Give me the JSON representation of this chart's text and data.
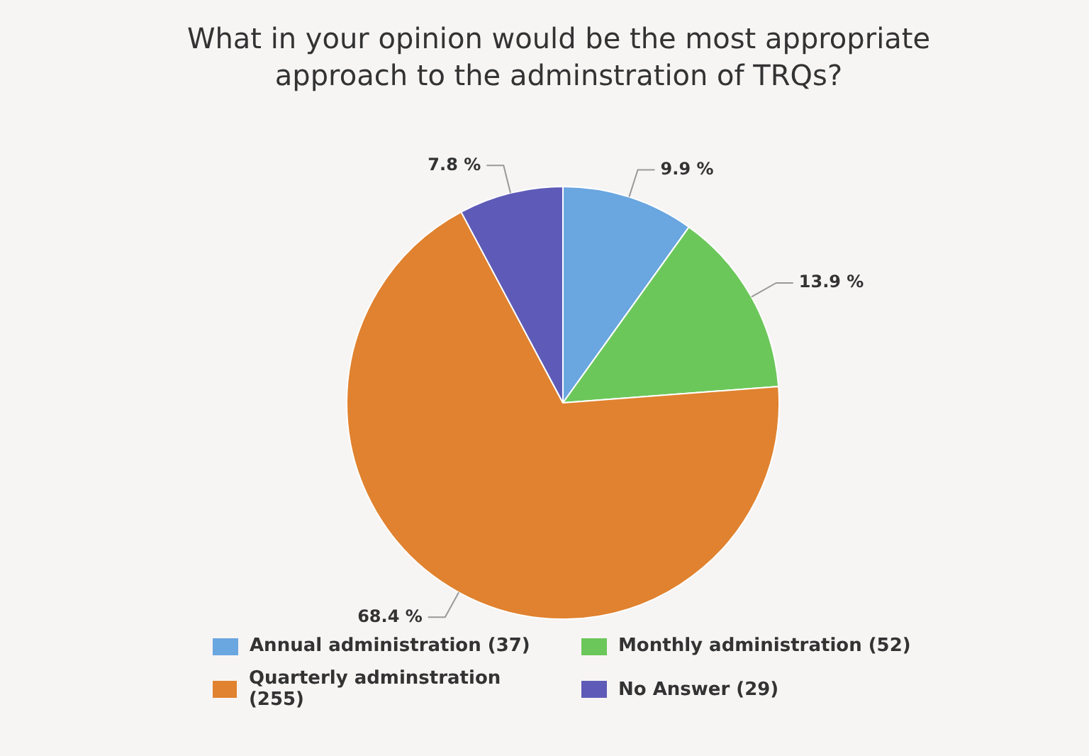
{
  "chart_data": {
    "type": "pie",
    "title": "What in your opinion would be the most appropriate approach to the adminstration of TRQs?",
    "categories": [
      "Annual administration (37)",
      "Monthly administration (52)",
      "Quarterly adminstration (255)",
      "No Answer (29)"
    ],
    "values": [
      9.9,
      13.9,
      68.4,
      7.8
    ],
    "value_labels": [
      "9.9 %",
      "13.9 %",
      "68.4 %",
      "7.8 %"
    ],
    "colors": [
      "#6aa6e0",
      "#6cc75a",
      "#e0822f",
      "#5e5bb8"
    ],
    "legend": "bottom"
  }
}
